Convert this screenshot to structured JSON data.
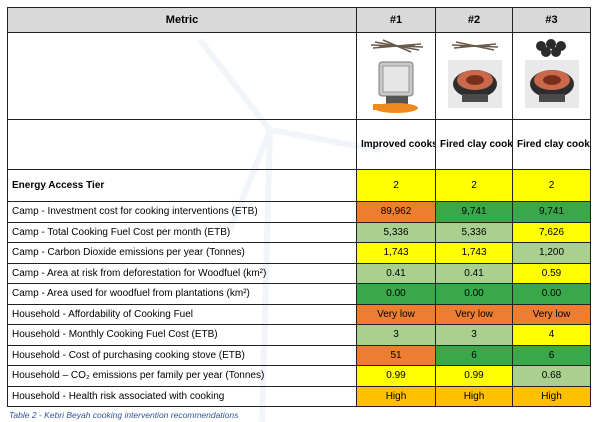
{
  "colors": {
    "header_bg": "#d9d9d9",
    "dark_orange": "#ed7d31",
    "dark_green": "#3aa84a",
    "light_green": "#a9d08e",
    "yellow": "#ffff00",
    "amber": "#ffc000"
  },
  "header": {
    "metric": "Metric",
    "options": [
      "#1",
      "#2",
      "#3"
    ]
  },
  "stoves": [
    {
      "name": "Improved cookstove (woodfuel)",
      "icons": [
        "wood-bundle-icon",
        "metal-cookstove-icon"
      ]
    },
    {
      "name": "Fired clay cookstove (woodfuel)",
      "icons": [
        "wood-bundle-icon",
        "clay-cookstove-icon"
      ]
    },
    {
      "name": "Fired clay cookstove (charcoal)",
      "icons": [
        "charcoal-icon",
        "clay-cookstove-icon"
      ]
    }
  ],
  "tier": {
    "label": "Energy Access Tier",
    "values": [
      {
        "text": "2",
        "color": "#ffff00"
      },
      {
        "text": "2",
        "color": "#ffff00"
      },
      {
        "text": "2",
        "color": "#ffff00"
      }
    ]
  },
  "rows": [
    {
      "label": "Camp - Investment cost for cooking interventions (ETB)",
      "values": [
        {
          "text": "89,962",
          "color": "#ed7d31"
        },
        {
          "text": "9,741",
          "color": "#3aa84a"
        },
        {
          "text": "9,741",
          "color": "#3aa84a"
        }
      ]
    },
    {
      "label": "Camp - Total Cooking Fuel Cost per month (ETB)",
      "values": [
        {
          "text": "5,336",
          "color": "#a9d08e"
        },
        {
          "text": "5,336",
          "color": "#a9d08e"
        },
        {
          "text": "7,626",
          "color": "#ffff00"
        }
      ]
    },
    {
      "label": "Camp - Carbon Dioxide emissions per year (Tonnes)",
      "values": [
        {
          "text": "1,743",
          "color": "#ffff00"
        },
        {
          "text": "1,743",
          "color": "#ffff00"
        },
        {
          "text": "1,200",
          "color": "#a9d08e"
        }
      ]
    },
    {
      "label": "Camp - Area at risk from deforestation for Woodfuel (km²)",
      "values": [
        {
          "text": "0.41",
          "color": "#a9d08e"
        },
        {
          "text": "0.41",
          "color": "#a9d08e"
        },
        {
          "text": "0.59",
          "color": "#ffff00"
        }
      ]
    },
    {
      "label": "Camp - Area used for woodfuel from plantations (km²)",
      "values": [
        {
          "text": "0.00",
          "color": "#3aa84a"
        },
        {
          "text": "0.00",
          "color": "#3aa84a"
        },
        {
          "text": "0.00",
          "color": "#3aa84a"
        }
      ]
    },
    {
      "label": "Household - Affordability of Cooking Fuel",
      "values": [
        {
          "text": "Very low",
          "color": "#ed7d31"
        },
        {
          "text": "Very low",
          "color": "#ed7d31"
        },
        {
          "text": "Very low",
          "color": "#ed7d31"
        }
      ]
    },
    {
      "label": "Household - Monthly Cooking Fuel Cost (ETB)",
      "values": [
        {
          "text": "3",
          "color": "#a9d08e"
        },
        {
          "text": "3",
          "color": "#a9d08e"
        },
        {
          "text": "4",
          "color": "#ffff00"
        }
      ]
    },
    {
      "label": "Household - Cost of purchasing cooking stove (ETB)",
      "values": [
        {
          "text": "51",
          "color": "#ed7d31"
        },
        {
          "text": "6",
          "color": "#3aa84a"
        },
        {
          "text": "6",
          "color": "#3aa84a"
        }
      ]
    },
    {
      "label": "Household – CO₂ emissions per family per year (Tonnes)",
      "values": [
        {
          "text": "0.99",
          "color": "#ffff00"
        },
        {
          "text": "0.99",
          "color": "#ffff00"
        },
        {
          "text": "0.68",
          "color": "#a9d08e"
        }
      ]
    },
    {
      "label": "Household - Health risk associated with cooking",
      "values": [
        {
          "text": "High",
          "color": "#ffc000"
        },
        {
          "text": "High",
          "color": "#ffc000"
        },
        {
          "text": "High",
          "color": "#ffc000"
        }
      ]
    }
  ],
  "caption": "Table 2 - Kebri Beyah cooking intervention recommendations"
}
